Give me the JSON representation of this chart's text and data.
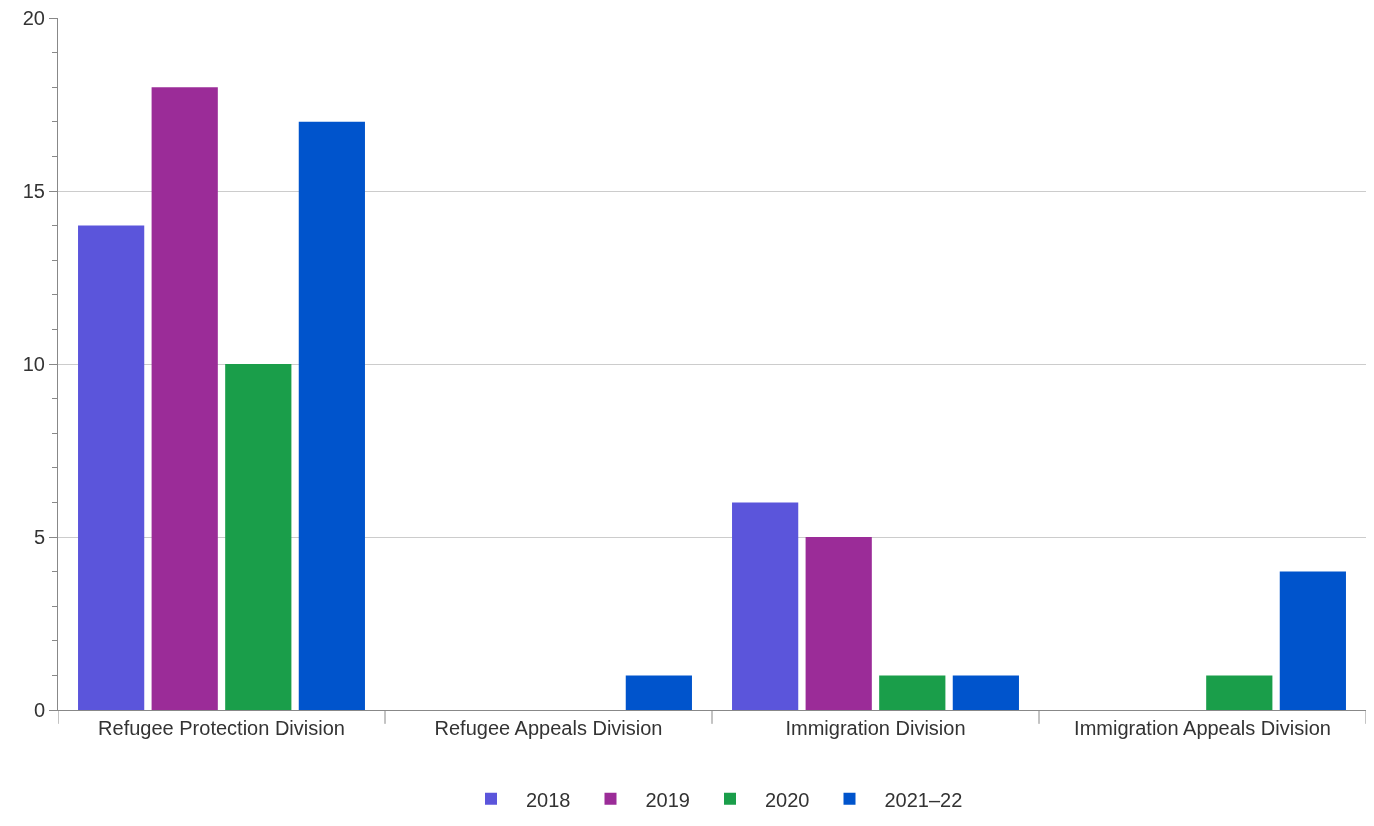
{
  "chart_data": {
    "type": "bar",
    "categories": [
      "Refugee Protection Division",
      "Refugee Appeals Division",
      "Immigration Division",
      "Immigration Appeals Division"
    ],
    "series": [
      {
        "name": "2018",
        "color": "#5b55db",
        "values": [
          14,
          0,
          6,
          0
        ]
      },
      {
        "name": "2019",
        "color": "#9b2c98",
        "values": [
          18,
          0,
          5,
          0
        ]
      },
      {
        "name": "2020",
        "color": "#1a9e4a",
        "values": [
          10,
          0,
          1,
          1
        ]
      },
      {
        "name": "2021–22",
        "color": "#0054cc",
        "values": [
          17,
          1,
          1,
          4
        ]
      }
    ],
    "ylim": [
      0,
      20
    ],
    "yticks": [
      0,
      5,
      10,
      15,
      20
    ],
    "grid": "y",
    "legend": "bottom"
  }
}
